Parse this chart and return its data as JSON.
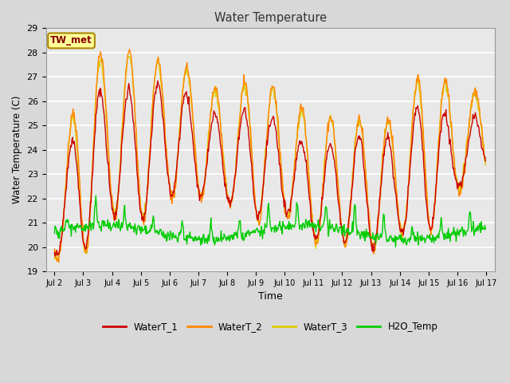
{
  "title": "Water Temperature",
  "xlabel": "Time",
  "ylabel": "Water Temperature (C)",
  "ylim": [
    19.0,
    29.0
  ],
  "yticks": [
    19.0,
    20.0,
    21.0,
    22.0,
    23.0,
    24.0,
    25.0,
    26.0,
    27.0,
    28.0,
    29.0
  ],
  "n_days": 15,
  "points_per_day": 48,
  "series_colors": {
    "WaterT_1": "#cc0000",
    "WaterT_2": "#ff8800",
    "WaterT_3": "#ddcc00",
    "H2O_Temp": "#00cc00"
  },
  "fig_bg_color": "#d8d8d8",
  "plot_bg_color": "#e8e8e8",
  "grid_color": "#ffffff",
  "annotation_text": "TW_met",
  "annotation_bg": "#ffff99",
  "annotation_border": "#aa8800",
  "annotation_text_color": "#880000"
}
